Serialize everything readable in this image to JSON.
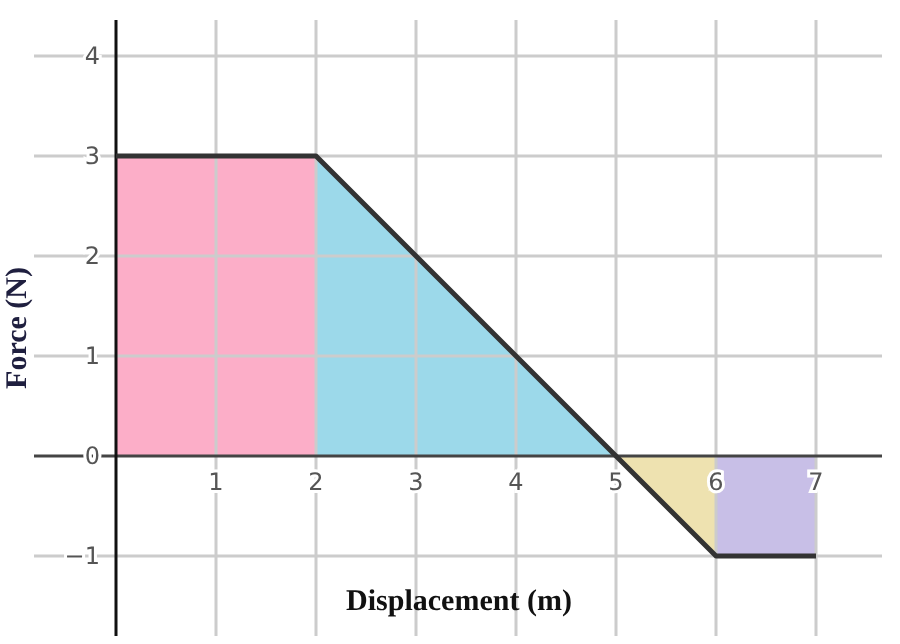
{
  "chart_data": {
    "type": "area",
    "xlabel": "Displacement (m)",
    "ylabel": "Force (N)",
    "xlim": [
      -0.82,
      7.66
    ],
    "ylim": [
      -1.8,
      4.36
    ],
    "xticks": [
      {
        "value": 0,
        "label": null
      },
      1,
      2,
      3,
      4,
      5,
      6,
      7
    ],
    "yticks": [
      -1,
      0,
      1,
      2,
      3,
      4
    ],
    "grid": true,
    "series": [
      {
        "color": "#fcaec8",
        "x": [
          0,
          2
        ],
        "values": [
          3,
          3
        ]
      },
      {
        "color": "#9cd9ea",
        "x": [
          2,
          5
        ],
        "values": [
          3,
          0
        ]
      },
      {
        "color": "#eee2b0",
        "x": [
          5,
          6
        ],
        "values": [
          0,
          -1
        ]
      },
      {
        "color": "#c8bfe7",
        "x": [
          6,
          7
        ],
        "values": [
          -1,
          -1
        ]
      },
      {
        "type": "line",
        "color": "#333333",
        "x": [
          0,
          2,
          5,
          6,
          7
        ],
        "values": [
          3,
          3,
          0,
          -1,
          -1
        ]
      }
    ]
  }
}
